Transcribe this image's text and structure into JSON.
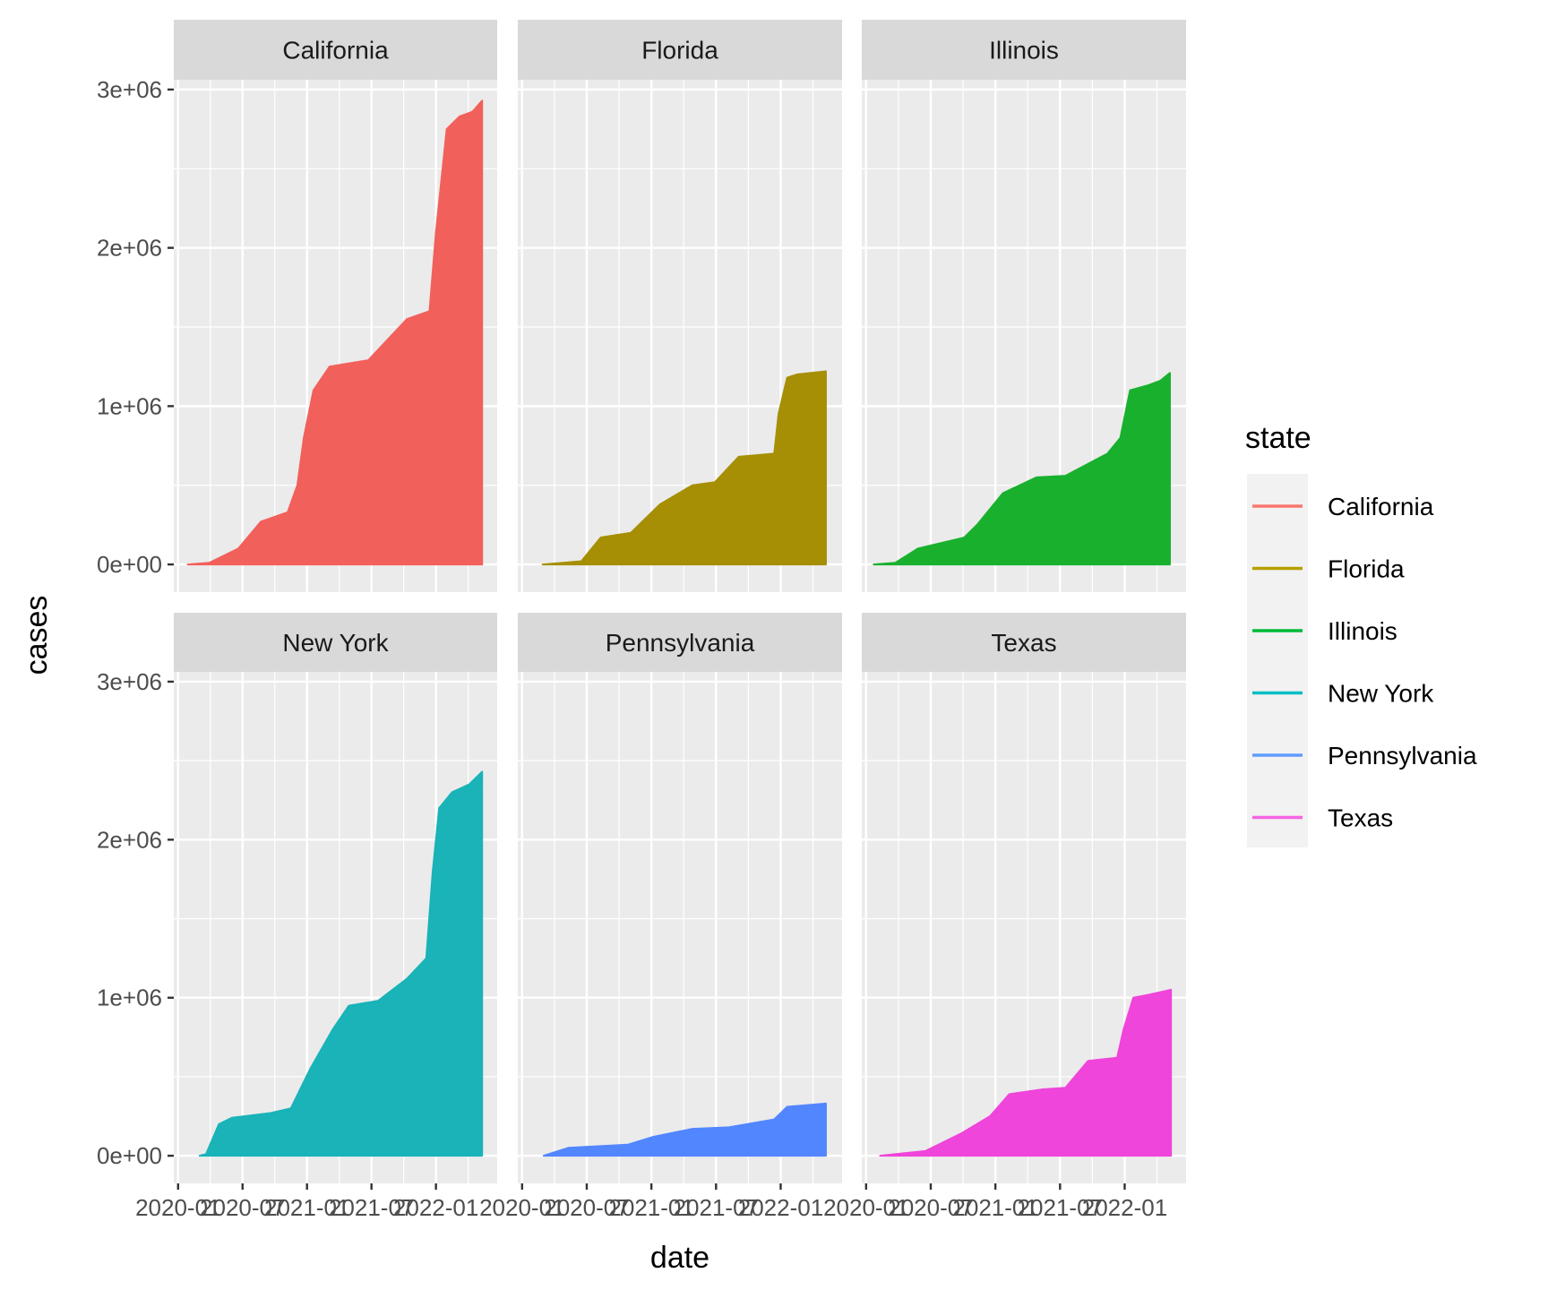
{
  "chart_data": {
    "type": "area",
    "facet_by": "state",
    "xlabel": "date",
    "ylabel": "cases",
    "x_unit": "months since 2020-01-01",
    "x_domain": [
      -0.4,
      29.7
    ],
    "x_ticks": [
      {
        "value": 0,
        "label": "2020-01"
      },
      {
        "value": 6,
        "label": "2020-07"
      },
      {
        "value": 12,
        "label": "2021-01"
      },
      {
        "value": 18,
        "label": "2021-07"
      },
      {
        "value": 24,
        "label": "2022-01"
      }
    ],
    "y_domain": [
      -175000,
      3062000
    ],
    "y_ticks": [
      {
        "value": 0,
        "label": "0e+00"
      },
      {
        "value": 1000000,
        "label": "1e+06"
      },
      {
        "value": 2000000,
        "label": "2e+06"
      },
      {
        "value": 3000000,
        "label": "3e+06"
      }
    ],
    "grid": true,
    "legend": {
      "title": "state",
      "placement": "right"
    },
    "series": [
      {
        "name": "California",
        "color": "#F8766D",
        "fill": "#F2605B",
        "x": [
          0.9,
          2.9,
          5.6,
          7.7,
          10.2,
          11.1,
          11.7,
          12.6,
          14.1,
          17.7,
          19.5,
          21.3,
          23.4,
          24.0,
          25.0,
          26.2,
          27.4,
          28.3
        ],
        "y": [
          0,
          10000,
          100000,
          270000,
          330000,
          500000,
          800000,
          1100000,
          1250000,
          1290000,
          1420000,
          1550000,
          1600000,
          2100000,
          2750000,
          2830000,
          2860000,
          2930000
        ]
      },
      {
        "name": "Florida",
        "color": "#B79F00",
        "fill": "#A68F05",
        "x": [
          1.9,
          5.5,
          7.3,
          10.1,
          12.8,
          15.8,
          17.9,
          20.1,
          23.4,
          23.8,
          24.6,
          25.5,
          28.2
        ],
        "y": [
          0,
          20000,
          170000,
          200000,
          380000,
          500000,
          520000,
          680000,
          700000,
          950000,
          1180000,
          1200000,
          1220000
        ]
      },
      {
        "name": "Illinois",
        "color": "#00BA38",
        "fill": "#19B02E",
        "x": [
          0.7,
          2.7,
          4.8,
          9.1,
          10.3,
          12.7,
          15.8,
          18.5,
          22.4,
          23.6,
          24.5,
          26.1,
          27.3,
          28.2
        ],
        "y": [
          0,
          10000,
          100000,
          170000,
          250000,
          450000,
          550000,
          560000,
          700000,
          800000,
          1100000,
          1130000,
          1160000,
          1210000
        ]
      },
      {
        "name": "New York",
        "color": "#00BFC4",
        "fill": "#19B3B8",
        "x": [
          2.0,
          2.6,
          3.8,
          5.0,
          8.6,
          10.5,
          12.3,
          14.4,
          15.9,
          18.6,
          21.3,
          23.1,
          23.7,
          24.3,
          25.5,
          27.1,
          28.3
        ],
        "y": [
          0,
          10000,
          200000,
          240000,
          270000,
          300000,
          550000,
          800000,
          950000,
          980000,
          1120000,
          1250000,
          1800000,
          2200000,
          2300000,
          2350000,
          2430000
        ]
      },
      {
        "name": "Pennsylvania",
        "color": "#619CFF",
        "fill": "#5286FF",
        "x": [
          2.0,
          4.3,
          9.8,
          12.2,
          15.8,
          19.2,
          23.4,
          24.6,
          28.2
        ],
        "y": [
          0,
          50000,
          70000,
          120000,
          170000,
          180000,
          230000,
          310000,
          330000
        ]
      },
      {
        "name": "Texas",
        "color": "#F564E3",
        "fill": "#EF45DA",
        "x": [
          1.3,
          5.5,
          8.8,
          11.5,
          13.3,
          16.4,
          18.5,
          20.6,
          23.3,
          23.9,
          24.8,
          26.3,
          28.3
        ],
        "y": [
          0,
          30000,
          140000,
          250000,
          390000,
          420000,
          430000,
          600000,
          620000,
          800000,
          1000000,
          1020000,
          1050000
        ]
      }
    ]
  }
}
